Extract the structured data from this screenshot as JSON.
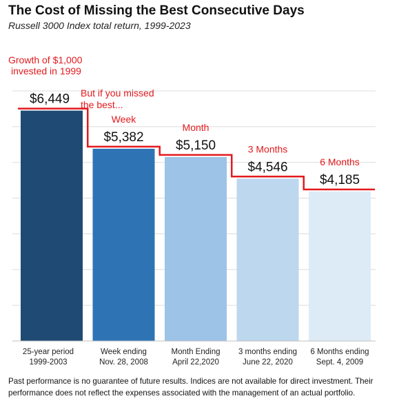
{
  "title": "The Cost of Missing the Best Consecutive Days",
  "subtitle": "Russell 3000 Index total return, 1999-2023",
  "footnote": "Past performance is no guarantee of future results. Indices are not available for direct investment. Their performance does not reflect the expenses associated with the management of an actual portfolio.",
  "colors": {
    "accent_red": "#e3191c",
    "grid": "#dcdcdc",
    "bars": [
      "#1f4a73",
      "#2e74b5",
      "#9dc3e6",
      "#bdd7ee",
      "#ddebf7"
    ]
  },
  "chart_data": {
    "type": "bar",
    "title": "The Cost of Missing the Best Consecutive Days",
    "subtitle": "Russell 3000 Index total return, 1999-2023",
    "xlabel": "",
    "ylabel": "",
    "ylim": [
      0,
      7000
    ],
    "grid": true,
    "categories": [
      [
        "25-year period",
        "1999-2003"
      ],
      [
        "Week ending",
        "Nov. 28, 2008"
      ],
      [
        "Month Ending",
        "April 22,2020"
      ],
      [
        "3 months ending",
        "June 22, 2020"
      ],
      [
        "6 Months ending",
        "Sept. 4, 2009"
      ]
    ],
    "values": [
      6449,
      5382,
      5150,
      4546,
      4185
    ],
    "value_labels": [
      "$6,449",
      "$5,382",
      "$5,150",
      "$4,546",
      "$4,185"
    ],
    "missed_labels": [
      "",
      "Week",
      "Month",
      "3 Months",
      "6 Months"
    ],
    "annotations": {
      "growth": [
        "Growth of $1,000",
        "invested in 1999"
      ],
      "missed": [
        "But if you missed",
        "the best..."
      ]
    }
  }
}
